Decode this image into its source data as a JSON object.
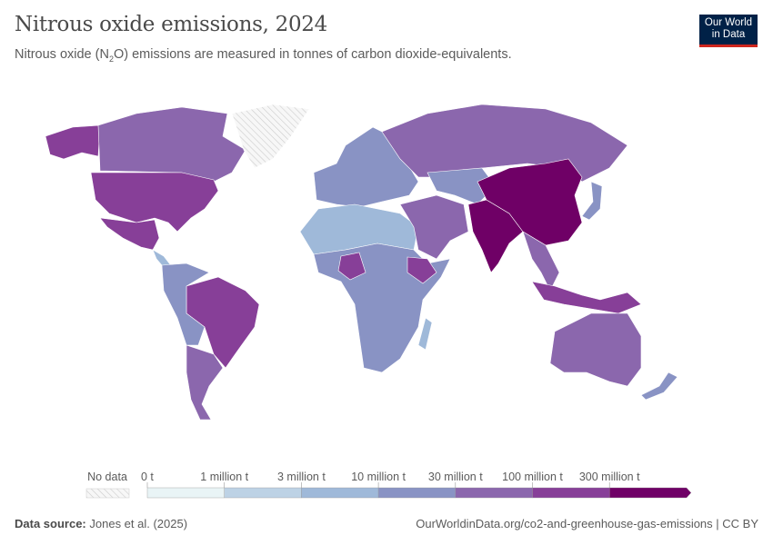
{
  "header": {
    "title": "Nitrous oxide emissions, 2024",
    "subtitle_pre": "Nitrous oxide (N",
    "subtitle_sub": "2",
    "subtitle_post": "O) emissions are measured in tonnes of carbon dioxide-equivalents.",
    "logo_line1": "Our World",
    "logo_line2": "in Data"
  },
  "legend": {
    "no_data_label": "No data",
    "ticks": [
      "0 t",
      "1 million t",
      "3 million t",
      "10 million t",
      "30 million t",
      "100 million t",
      "300 million t"
    ],
    "colors": [
      "#e9f4f6",
      "#bdd2e5",
      "#9fb9d9",
      "#8993c4",
      "#8b67ad",
      "#873f98",
      "#6f0066"
    ],
    "no_data_color": "#e6e6e6"
  },
  "map_regions": [
    {
      "name": "alaska",
      "bin": 5
    },
    {
      "name": "canada",
      "bin": 4
    },
    {
      "name": "usa",
      "bin": 5
    },
    {
      "name": "greenland",
      "bin": -1
    },
    {
      "name": "mexico",
      "bin": 5
    },
    {
      "name": "central-america",
      "bin": 2
    },
    {
      "name": "brazil",
      "bin": 5
    },
    {
      "name": "south-america-west",
      "bin": 3
    },
    {
      "name": "argentina",
      "bin": 4
    },
    {
      "name": "europe",
      "bin": 3
    },
    {
      "name": "russia",
      "bin": 4
    },
    {
      "name": "north-africa",
      "bin": 2
    },
    {
      "name": "sub-saharan-africa",
      "bin": 3
    },
    {
      "name": "nigeria",
      "bin": 5
    },
    {
      "name": "ethiopia",
      "bin": 5
    },
    {
      "name": "middle-east",
      "bin": 4
    },
    {
      "name": "central-asia",
      "bin": 3
    },
    {
      "name": "india",
      "bin": 6
    },
    {
      "name": "china",
      "bin": 6
    },
    {
      "name": "southeast-asia",
      "bin": 4
    },
    {
      "name": "indonesia",
      "bin": 5
    },
    {
      "name": "australia",
      "bin": 4
    },
    {
      "name": "new-zealand",
      "bin": 3
    },
    {
      "name": "japan",
      "bin": 3
    },
    {
      "name": "madagascar",
      "bin": 2
    }
  ],
  "footer": {
    "source_label": "Data source:",
    "source": "Jones et al. (2025)",
    "url": "OurWorldinData.org/co2-and-greenhouse-gas-emissions | CC BY"
  }
}
